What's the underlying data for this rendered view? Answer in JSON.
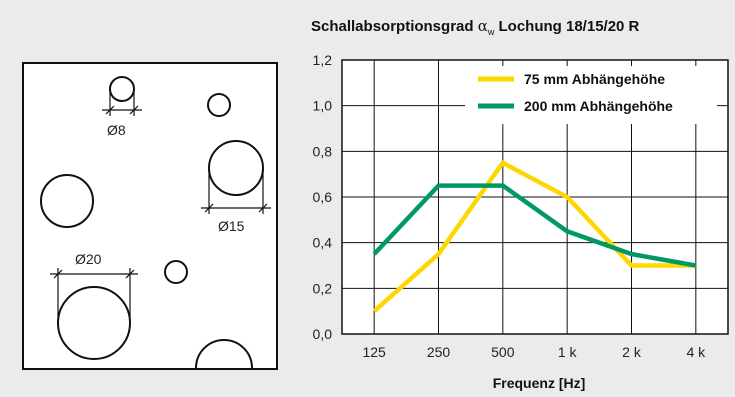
{
  "title": {
    "prefix": "Schallabsorptionsgrad ",
    "symbol": "α",
    "subscript": "w",
    "suffix": " Lochung 18/15/20 R"
  },
  "perforation": {
    "labels": [
      "Ø8",
      "Ø15",
      "Ø20"
    ]
  },
  "chart_data": {
    "type": "line",
    "categories": [
      "125",
      "250",
      "500",
      "1 k",
      "2 k",
      "4 k"
    ],
    "xlabel": "Frequenz [Hz]",
    "ylabel": "",
    "ylim": [
      0,
      1.2
    ],
    "yticks": [
      "0,0",
      "0,2",
      "0,4",
      "0,6",
      "0,8",
      "1,0",
      "1,2"
    ],
    "grid": true,
    "legend_position": "top-right",
    "series": [
      {
        "name": "75 mm Abhängehöhe",
        "color": "#ffd700",
        "values": [
          0.1,
          0.35,
          0.75,
          0.6,
          0.3,
          0.3
        ]
      },
      {
        "name": "200 mm Abhängehöhe",
        "color": "#009966",
        "values": [
          0.35,
          0.65,
          0.65,
          0.45,
          0.35,
          0.3
        ]
      }
    ]
  }
}
